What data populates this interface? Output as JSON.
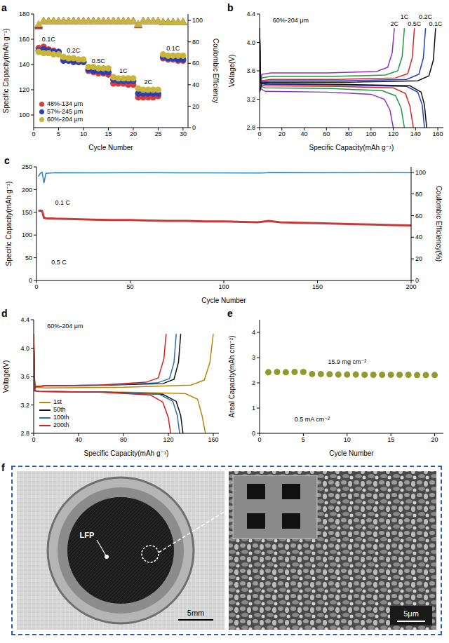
{
  "panels": [
    "a",
    "b",
    "c",
    "d",
    "e",
    "f"
  ],
  "chart_data": [
    {
      "type": "scatter",
      "xlabel": "Cycle Number",
      "ylabel": "Specific Capacity(mAh g⁻¹)",
      "y2label": "Coulombic Efficiency",
      "x": [
        1,
        2,
        3,
        4,
        5,
        6,
        7,
        8,
        9,
        10,
        11,
        12,
        13,
        14,
        15,
        16,
        17,
        18,
        19,
        20,
        21,
        22,
        23,
        24,
        25,
        26,
        27,
        28,
        29,
        30
      ],
      "xlim": [
        0,
        31
      ],
      "xticks": [
        0,
        5,
        10,
        15,
        20,
        25,
        30
      ],
      "ylim": [
        90,
        180
      ],
      "yticks": [
        100,
        120,
        140,
        160,
        180
      ],
      "y2lim": [
        0,
        106
      ],
      "y2ticks": [
        0,
        20,
        40,
        60,
        80,
        100
      ],
      "legend": "lower left",
      "series": [
        {
          "name": "48%-134 μm",
          "color": "#d93a3a",
          "marker": "circle",
          "values": [
            153,
            154,
            152,
            151,
            150,
            144,
            143,
            143,
            142,
            142,
            135,
            134,
            133,
            133,
            132,
            125,
            125,
            125,
            124,
            124,
            114,
            114,
            114,
            114,
            115,
            145,
            144,
            144,
            143,
            143
          ]
        },
        {
          "name": "57%-245 μm",
          "color": "#2b3fb0",
          "marker": "circle",
          "values": [
            151,
            152,
            151,
            150,
            150,
            143,
            143,
            142,
            142,
            142,
            136,
            135,
            135,
            134,
            134,
            128,
            127,
            127,
            127,
            127,
            117,
            117,
            117,
            117,
            117,
            146,
            145,
            145,
            144,
            144
          ]
        },
        {
          "name": "60%-204 μm",
          "color": "#c9b53a",
          "marker": "circle",
          "values": [
            150,
            149,
            149,
            148,
            148,
            146,
            145,
            145,
            144,
            144,
            138,
            138,
            137,
            137,
            137,
            130,
            129,
            129,
            129,
            129,
            121,
            120,
            120,
            120,
            120,
            148,
            147,
            147,
            147,
            147
          ]
        },
        {
          "color": "#d93a3a",
          "marker": "triangle",
          "axis": "y2",
          "values": [
            94,
            99,
            99,
            99,
            99,
            99,
            99,
            99,
            99,
            99,
            99,
            99,
            99,
            99,
            99,
            99,
            99,
            99,
            99,
            99,
            95,
            99,
            99,
            99,
            99,
            98,
            98,
            98,
            98,
            98
          ]
        },
        {
          "color": "#2b3fb0",
          "marker": "triangle",
          "axis": "y2",
          "values": [
            95,
            99,
            99,
            99,
            99,
            99,
            99,
            99,
            99,
            99,
            99,
            99,
            99,
            99,
            99,
            99,
            99,
            99,
            99,
            99,
            96,
            99,
            99,
            99,
            99,
            98,
            98,
            98,
            98,
            98
          ]
        },
        {
          "color": "#c9b53a",
          "marker": "triangle",
          "axis": "y2",
          "values": [
            96,
            99,
            99,
            99,
            99,
            99,
            99,
            99,
            99,
            99,
            99,
            99,
            99,
            99,
            99,
            99,
            99,
            99,
            99,
            99,
            96,
            99,
            99,
            99,
            99,
            98,
            98,
            98,
            98,
            98
          ]
        }
      ],
      "annotations": [
        {
          "text": "0.1C",
          "x": 3,
          "y": 160
        },
        {
          "text": "0.2C",
          "x": 8,
          "y": 151
        },
        {
          "text": "0.5C",
          "x": 13,
          "y": 143
        },
        {
          "text": "1C",
          "x": 18,
          "y": 135
        },
        {
          "text": "2C",
          "x": 23,
          "y": 126
        },
        {
          "text": "0.1C",
          "x": 28,
          "y": 153
        }
      ]
    },
    {
      "type": "line",
      "xlabel": "Specific Capacity(mAh g⁻¹)",
      "ylabel": "Voltage(V)",
      "xlim": [
        0,
        165
      ],
      "xticks": [
        0,
        20,
        40,
        60,
        80,
        100,
        120,
        140,
        160
      ],
      "ylim": [
        2.8,
        4.4
      ],
      "yticks": [
        2.8,
        3.2,
        3.6,
        {
          "value": 4,
          "label": "4.0"
        },
        4.4
      ],
      "annotations": [
        {
          "text": "60%-204 μm",
          "x": 28,
          "y": 4.31
        }
      ],
      "series": [
        {
          "name": "2C",
          "color": "#8e2fc2",
          "charge": {
            "x": [
              0,
              2,
              10,
              60,
              105,
              115,
              119,
              121
            ],
            "values": [
              3.3,
              3.55,
              3.57,
              3.57,
              3.59,
              3.65,
              3.85,
              4.2
            ]
          },
          "discharge": {
            "x": [
              0,
              1,
              5,
              60,
              100,
              112,
              117,
              120
            ],
            "values": [
              4.2,
              3.35,
              3.31,
              3.3,
              3.27,
              3.2,
              3.05,
              2.8
            ]
          }
        },
        {
          "name": "1C",
          "color": "#1f9a3c",
          "charge": {
            "x": [
              0,
              2,
              10,
              65,
              113,
              124,
              128,
              130
            ],
            "values": [
              3.3,
              3.5,
              3.52,
              3.52,
              3.54,
              3.6,
              3.8,
              4.2
            ]
          },
          "discharge": {
            "x": [
              0,
              1,
              5,
              65,
              110,
              122,
              127,
              130
            ],
            "values": [
              4.2,
              3.38,
              3.36,
              3.35,
              3.32,
              3.25,
              3.08,
              2.8
            ]
          }
        },
        {
          "name": "0.5C",
          "color": "#e02424",
          "charge": {
            "x": [
              0,
              2,
              10,
              70,
              122,
              133,
              137,
              139
            ],
            "values": [
              3.3,
              3.46,
              3.48,
              3.48,
              3.5,
              3.56,
              3.78,
              4.2
            ]
          },
          "discharge": {
            "x": [
              0,
              1,
              5,
              70,
              120,
              131,
              135,
              138
            ],
            "values": [
              4.2,
              3.4,
              3.39,
              3.38,
              3.36,
              3.28,
              3.1,
              2.8
            ]
          }
        },
        {
          "name": "0.2C",
          "color": "#1f3fd6",
          "charge": {
            "x": [
              0,
              2,
              10,
              75,
              132,
              143,
              147,
              149
            ],
            "values": [
              3.3,
              3.44,
              3.46,
              3.46,
              3.48,
              3.55,
              3.78,
              4.2
            ]
          },
          "discharge": {
            "x": [
              0,
              1,
              5,
              75,
              132,
              142,
              146,
              148
            ],
            "values": [
              4.2,
              3.42,
              3.41,
              3.4,
              3.38,
              3.3,
              3.12,
              2.8
            ]
          }
        },
        {
          "name": "0.1C",
          "color": "#111111",
          "charge": {
            "x": [
              0,
              2,
              10,
              80,
              142,
              152,
              156,
              158
            ],
            "values": [
              3.3,
              3.43,
              3.44,
              3.44,
              3.46,
              3.53,
              3.75,
              4.2
            ]
          },
          "discharge": {
            "x": [
              0,
              1,
              5,
              75,
              135,
              145,
              148,
              150
            ],
            "values": [
              4.2,
              3.43,
              3.42,
              3.41,
              3.39,
              3.3,
              3.12,
              2.8
            ]
          }
        }
      ]
    },
    {
      "type": "line",
      "xlabel": "Cycle Number",
      "ylabel": "Specific Capacity(mAh g⁻¹)",
      "y2label": "Coulombic Efficiency(%)",
      "xlim": [
        0,
        200
      ],
      "xticks": [
        0,
        50,
        100,
        150,
        200
      ],
      "ylim": [
        0,
        250
      ],
      "yticks": [
        0,
        50,
        100,
        150,
        200,
        250
      ],
      "y2lim": [
        0,
        105
      ],
      "y2ticks": [
        0,
        20,
        40,
        60,
        80,
        100
      ],
      "annotations": [
        {
          "text": "0.1 C",
          "x": 14,
          "y": 172
        },
        {
          "text": "0.5 C",
          "x": 12,
          "y": 40
        }
      ],
      "series": [
        {
          "color": "#c83a3a",
          "x": [
            1,
            2,
            3,
            4,
            5,
            10,
            20,
            30,
            40,
            50,
            60,
            70,
            80,
            90,
            100,
            110,
            118,
            122,
            124,
            126,
            130,
            140,
            150,
            160,
            170,
            180,
            190,
            200
          ],
          "values": [
            153,
            154,
            153,
            138,
            137,
            136,
            135,
            134,
            133,
            133,
            132,
            131,
            131,
            130,
            130,
            129,
            128,
            130,
            131,
            130,
            128,
            127,
            126,
            125,
            124,
            123,
            122,
            121
          ]
        },
        {
          "color": "#2a80c8",
          "axis": "y2",
          "x": [
            1,
            2,
            3,
            4,
            5,
            10,
            30,
            60,
            90,
            120,
            125,
            150,
            180,
            200
          ],
          "values": [
            96,
            99,
            100,
            90,
            99,
            99.6,
            99.5,
            99.6,
            99.5,
            99.4,
            99.8,
            99.6,
            100,
            99.8
          ]
        }
      ]
    },
    {
      "type": "line",
      "xlabel": "Specific Capacity(mAh g⁻¹)",
      "ylabel": "Voltage(V)",
      "xlim": [
        0,
        165
      ],
      "xticks": [
        0,
        40,
        80,
        120,
        160
      ],
      "ylim": [
        2.8,
        4.4
      ],
      "yticks": [
        2.8,
        3.2,
        3.6,
        {
          "value": 4,
          "label": "4.0"
        },
        4.4
      ],
      "legend": "lower left",
      "annotations": [
        {
          "text": "60%-204 μm",
          "x": 28,
          "y": 4.31
        }
      ],
      "series": [
        {
          "name": "1st",
          "color": "#b8860b",
          "charge": {
            "x": [
              0,
              2,
              10,
              80,
              140,
              152,
              157,
              160
            ],
            "values": [
              3.62,
              3.45,
              3.44,
              3.45,
              3.48,
              3.55,
              3.8,
              4.2
            ]
          },
          "discharge": {
            "x": [
              0,
              1,
              5,
              80,
              135,
              146,
              150,
              153
            ],
            "values": [
              4.2,
              3.4,
              3.39,
              3.38,
              3.36,
              3.28,
              3.05,
              2.8
            ]
          }
        },
        {
          "name": "50th",
          "color": "#111111",
          "charge": {
            "x": [
              0,
              2,
              10,
              65,
              115,
              125,
              129,
              131
            ],
            "values": [
              3.4,
              3.46,
              3.47,
              3.48,
              3.5,
              3.56,
              3.8,
              4.2
            ]
          },
          "discharge": {
            "x": [
              0,
              1,
              5,
              65,
              115,
              127,
              131,
              133
            ],
            "values": [
              4.2,
              3.4,
              3.39,
              3.38,
              3.35,
              3.25,
              3.05,
              2.8
            ]
          }
        },
        {
          "name": "100th",
          "color": "#2f6fa8",
          "charge": {
            "x": [
              0,
              2,
              10,
              62,
              110,
              121,
              125,
              127
            ],
            "values": [
              3.4,
              3.46,
              3.47,
              3.48,
              3.51,
              3.57,
              3.8,
              4.2
            ]
          },
          "discharge": {
            "x": [
              0,
              1,
              5,
              62,
              112,
              124,
              128,
              130
            ],
            "values": [
              4.2,
              3.4,
              3.39,
              3.38,
              3.35,
              3.25,
              3.05,
              2.8
            ]
          }
        },
        {
          "name": "200th",
          "color": "#d42020",
          "charge": {
            "x": [
              0,
              2,
              10,
              58,
              100,
              111,
              116,
              118
            ],
            "values": [
              3.4,
              3.46,
              3.47,
              3.48,
              3.52,
              3.58,
              3.85,
              4.2
            ]
          },
          "discharge": {
            "x": [
              0,
              1,
              5,
              58,
              104,
              115,
              120,
              122
            ],
            "values": [
              4.2,
              3.4,
              3.39,
              3.38,
              3.34,
              3.24,
              3.02,
              2.8
            ]
          }
        }
      ]
    },
    {
      "type": "scatter",
      "xlabel": "Cycle Number",
      "ylabel": "Areal Capacity(mAh cm⁻²)",
      "x": [
        1,
        2,
        3,
        4,
        5,
        6,
        7,
        8,
        9,
        10,
        11,
        12,
        13,
        14,
        15,
        16,
        17,
        18,
        19,
        20
      ],
      "xlim": [
        0,
        21
      ],
      "xticks": [
        0,
        5,
        10,
        15,
        20
      ],
      "ylim": [
        0,
        4.5
      ],
      "yticks": [
        0,
        1,
        2,
        3,
        4
      ],
      "series": [
        {
          "color": "#8f9a2f",
          "marker": "circle",
          "values": [
            2.42,
            2.43,
            2.42,
            2.43,
            2.43,
            2.35,
            2.35,
            2.34,
            2.33,
            2.33,
            2.33,
            2.32,
            2.32,
            2.32,
            2.32,
            2.32,
            2.32,
            2.31,
            2.31,
            2.31
          ]
        }
      ],
      "annotations": [
        {
          "text": "15.9 mg cm⁻²",
          "x": 10,
          "y": 2.85
        },
        {
          "text": "0.5 mA cm⁻²",
          "x": 6,
          "y": 0.55
        }
      ]
    }
  ],
  "figure_f": {
    "labels": [
      "LFP"
    ],
    "scale_bars": [
      "5mm",
      "5μm"
    ]
  }
}
